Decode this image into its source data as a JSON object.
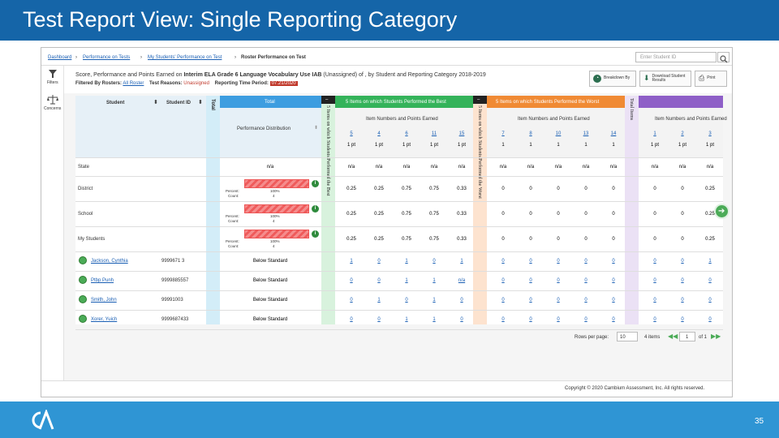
{
  "slide": {
    "title": "Test Report View: Single Reporting Category",
    "page": "35"
  },
  "app": {
    "breadcrumb": [
      "Dashboard",
      "Performance on Tests",
      "My Students' Performance on Test",
      "Roster Performance on Test"
    ],
    "breadcrumb_sep": "›",
    "search_placeholder": "Enter Student ID",
    "rail": {
      "filters": "Filters",
      "concerns": "Concerns"
    },
    "report_title": {
      "prefix": "Score, Performance and Points Earned on ",
      "test": "Interim ELA Grade 6 Language Vocabulary Use IAB",
      "suffix": " (Unassigned) of , by Student and Reporting Category  2018-2019"
    },
    "filtered_by": {
      "label": "Filtered By Rosters:",
      "rosters": "All Roster",
      "test_reasons_label": "Test Reasons:",
      "test_reasons": "Unassigned",
      "period_label": "Reporting Time Period:",
      "period": "07.21/2020"
    },
    "buttons": {
      "breakdown": "Breakdown By",
      "download": "Download Student Results",
      "print": "Print"
    },
    "copyright": "Copyright © 2020 Cambium Assessment, Inc. All rights reserved.",
    "scroll_glyph": "➔"
  },
  "table": {
    "headers": {
      "student": "Student",
      "student_id": "Student ID",
      "total_vertical": "Total",
      "total": "Total",
      "distribution": "Performance Distribution",
      "best_vertical": "5 Items on which Students Performed the Best",
      "best": "5 Items on which Students Performed the Best",
      "worst_vertical": "5 Items on which Students Performed the Worst",
      "worst": "5 Items on which Students Performed the Worst",
      "total_items_vertical": "Total Items",
      "item_numbers": "Item Numbers and Points Earned"
    },
    "sort_glyph": "⬍",
    "collapse_glyph": "–",
    "items": {
      "best": [
        {
          "num": "5",
          "pts": "1 pt"
        },
        {
          "num": "4",
          "pts": "1 pt"
        },
        {
          "num": "6",
          "pts": "1 pt"
        },
        {
          "num": "11",
          "pts": "1 pt"
        },
        {
          "num": "15",
          "pts": "1 pt"
        }
      ],
      "worst": [
        {
          "num": "7",
          "pts": "1"
        },
        {
          "num": "8",
          "pts": "1"
        },
        {
          "num": "10",
          "pts": "1"
        },
        {
          "num": "13",
          "pts": "1"
        },
        {
          "num": "14",
          "pts": "1"
        }
      ],
      "other": [
        {
          "num": "1",
          "pts": "1 pt"
        },
        {
          "num": "2",
          "pts": "1 pt"
        },
        {
          "num": "3",
          "pts": "1 pt"
        }
      ]
    },
    "aggregate_rows": [
      {
        "label": "State",
        "total": "n/a",
        "best": [
          "n/a",
          "n/a",
          "n/a",
          "n/a",
          "n/a"
        ],
        "worst": [
          "n/a",
          "n/a",
          "n/a",
          "n/a",
          "n/a"
        ],
        "other": [
          "n/a",
          "n/a",
          "n/a"
        ],
        "dist": null
      },
      {
        "label": "District",
        "total": "",
        "best": [
          "0.25",
          "0.25",
          "0.75",
          "0.75",
          "0.33"
        ],
        "worst": [
          "0",
          "0",
          "0",
          "0",
          "0"
        ],
        "other": [
          "0",
          "0",
          "0.25"
        ],
        "dist": {
          "percent_label": "Percent:",
          "percent": "100%",
          "count_label": "Count:",
          "count": "4",
          "fill_fraction": 1.0
        }
      },
      {
        "label": "School",
        "total": "",
        "best": [
          "0.25",
          "0.25",
          "0.75",
          "0.75",
          "0.33"
        ],
        "worst": [
          "0",
          "0",
          "0",
          "0",
          "0"
        ],
        "other": [
          "0",
          "0",
          "0.25"
        ],
        "dist": {
          "percent_label": "Percent:",
          "percent": "100%",
          "count_label": "Count:",
          "count": "4",
          "fill_fraction": 1.0
        }
      },
      {
        "label": "My Students",
        "total": "",
        "best": [
          "0.25",
          "0.25",
          "0.75",
          "0.75",
          "0.33"
        ],
        "worst": [
          "0",
          "0",
          "0",
          "0",
          "0"
        ],
        "other": [
          "0",
          "0",
          "0.25"
        ],
        "dist": {
          "percent_label": "Percent:",
          "percent": "100%",
          "count_label": "Count:",
          "count": "4",
          "fill_fraction": 1.0
        }
      }
    ],
    "student_rows": [
      {
        "name": "Jackson, Cynthia",
        "id": "9999671 3",
        "level": "Below Standard",
        "best": [
          "1",
          "0",
          "1",
          "0",
          "1"
        ],
        "worst": [
          "0",
          "0",
          "0",
          "0",
          "0"
        ],
        "other": [
          "0",
          "0",
          "1"
        ]
      },
      {
        "name": "Ptbp Punh",
        "id": "9999885557",
        "level": "Below Standard",
        "best": [
          "0",
          "0",
          "1",
          "1",
          "n/a"
        ],
        "worst": [
          "0",
          "0",
          "0",
          "0",
          "0"
        ],
        "other": [
          "0",
          "0",
          "0"
        ]
      },
      {
        "name": "Smith, John",
        "id": "99991003",
        "level": "Below Standard",
        "best": [
          "0",
          "1",
          "0",
          "1",
          "0"
        ],
        "worst": [
          "0",
          "0",
          "0",
          "0",
          "0"
        ],
        "other": [
          "0",
          "0",
          "0"
        ]
      },
      {
        "name": "Xorer, Yuich",
        "id": "9999687433",
        "level": "Below Standard",
        "best": [
          "0",
          "0",
          "1",
          "1",
          "0"
        ],
        "worst": [
          "0",
          "0",
          "0",
          "0",
          "0"
        ],
        "other": [
          "0",
          "0",
          "0"
        ]
      }
    ]
  },
  "pagination": {
    "rows_label": "Rows per page:",
    "rows_value": "10",
    "items": "4 items",
    "prev_glyph": "◀◀",
    "page": "1",
    "of": "of 1",
    "next_glyph": "▶▶"
  }
}
